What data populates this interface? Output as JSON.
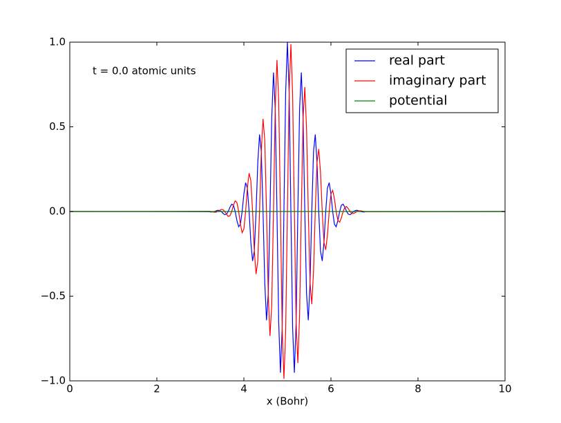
{
  "chart_data": {
    "type": "line",
    "xlabel": "x (Bohr)",
    "annotation": "t = 0.0 atomic units",
    "x": [
      0,
      3.2,
      3.24,
      3.28,
      3.32,
      3.36,
      3.4,
      3.44,
      3.48,
      3.52,
      3.56,
      3.6,
      3.64,
      3.68,
      3.72,
      3.76,
      3.8,
      3.84,
      3.88,
      3.92,
      3.96,
      4,
      4.04,
      4.08,
      4.12,
      4.16,
      4.2,
      4.24,
      4.28,
      4.32,
      4.36,
      4.4,
      4.44,
      4.48,
      4.52,
      4.56,
      4.6,
      4.64,
      4.68,
      4.72,
      4.76,
      4.8,
      4.84,
      4.88,
      4.92,
      4.96,
      5,
      5.04,
      5.08,
      5.12,
      5.16,
      5.2,
      5.24,
      5.28,
      5.32,
      5.36,
      5.4,
      5.44,
      5.48,
      5.52,
      5.56,
      5.6,
      5.64,
      5.68,
      5.72,
      5.76,
      5.8,
      5.84,
      5.88,
      5.92,
      5.96,
      6,
      6.04,
      6.08,
      6.12,
      6.16,
      6.2,
      6.24,
      6.28,
      6.32,
      6.36,
      6.4,
      6.44,
      6.48,
      6.52,
      6.56,
      6.6,
      6.64,
      6.68,
      6.72,
      6.76,
      6.8,
      10
    ],
    "series": [
      {
        "name": "real part",
        "color": "#0000ff",
        "values": [
          0,
          -0.001,
          -0.003,
          -0.002,
          0,
          0.004,
          0.007,
          0.006,
          0,
          -0.011,
          -0.019,
          -0.016,
          0,
          0.025,
          0.043,
          0.037,
          0,
          -0.053,
          -0.09,
          -0.075,
          0,
          0.103,
          0.17,
          0.139,
          0,
          -0.182,
          -0.292,
          -0.233,
          0,
          0.291,
          0.455,
          0.354,
          0,
          -0.421,
          -0.642,
          -0.487,
          0,
          0.551,
          0.821,
          0.608,
          0,
          -0.655,
          -0.952,
          -0.688,
          0,
          0.705,
          1,
          0.705,
          0,
          -0.688,
          -0.952,
          -0.655,
          0,
          0.608,
          0.821,
          0.551,
          0,
          -0.487,
          -0.642,
          -0.421,
          0,
          0.354,
          0.455,
          0.291,
          0,
          -0.233,
          -0.292,
          -0.182,
          0,
          0.139,
          0.17,
          0.103,
          0,
          -0.075,
          -0.09,
          -0.053,
          0,
          0.037,
          0.043,
          0.025,
          0,
          -0.016,
          -0.019,
          -0.011,
          0,
          0.006,
          0.007,
          0.004,
          0,
          -0.002,
          -0.003,
          -0.001,
          0
        ]
      },
      {
        "name": "imaginary part",
        "color": "#ff0000",
        "values": [
          0,
          0.001,
          0,
          -0.002,
          -0.004,
          -0.004,
          0,
          0.006,
          0.012,
          0.011,
          0,
          -0.016,
          -0.029,
          -0.025,
          0,
          0.037,
          0.063,
          0.053,
          0,
          -0.075,
          -0.125,
          -0.103,
          0,
          0.139,
          0.226,
          0.182,
          0,
          -0.233,
          -0.369,
          -0.291,
          0,
          0.354,
          0.547,
          0.421,
          0,
          -0.487,
          -0.735,
          -0.551,
          0,
          0.608,
          0.895,
          0.655,
          0,
          -0.688,
          -0.988,
          -0.705,
          0,
          0.705,
          0.988,
          0.688,
          0,
          -0.655,
          -0.895,
          -0.608,
          0,
          0.551,
          0.735,
          0.487,
          0,
          -0.421,
          -0.547,
          -0.354,
          0,
          0.291,
          0.369,
          0.233,
          0,
          -0.182,
          -0.226,
          -0.139,
          0,
          0.103,
          0.125,
          0.075,
          0,
          -0.053,
          -0.063,
          -0.037,
          0,
          0.025,
          0.029,
          0.016,
          0,
          -0.011,
          -0.012,
          -0.006,
          0,
          0.004,
          0.004,
          0.002,
          0,
          -0.001,
          0
        ]
      },
      {
        "name": "potential",
        "color": "#008000",
        "values": [
          0,
          0,
          0,
          0,
          0,
          0,
          0,
          0,
          0,
          0,
          0,
          0,
          0,
          0,
          0,
          0,
          0,
          0,
          0,
          0,
          0,
          0,
          0,
          0,
          0,
          0,
          0,
          0,
          0,
          0,
          0,
          0,
          0,
          0,
          0,
          0,
          0,
          0,
          0,
          0,
          0,
          0,
          0,
          0,
          0,
          0,
          0,
          0,
          0,
          0,
          0,
          0,
          0,
          0,
          0,
          0,
          0,
          0,
          0,
          0,
          0,
          0,
          0,
          0,
          0,
          0,
          0,
          0,
          0,
          0,
          0,
          0,
          0,
          0,
          0,
          0,
          0,
          0,
          0,
          0,
          0,
          0,
          0,
          0,
          0,
          0,
          0,
          0,
          0,
          0,
          0,
          0,
          0
        ]
      }
    ],
    "xlim": [
      0,
      10
    ],
    "xticks": [
      0,
      2,
      4,
      6,
      8,
      10
    ],
    "ylim": [
      -1,
      1
    ],
    "yticks": [
      {
        "value": -1,
        "label": "−1.0"
      },
      {
        "value": -0.5,
        "label": "−0.5"
      },
      {
        "value": 0,
        "label": "0.0"
      },
      {
        "value": 0.5,
        "label": "0.5"
      },
      {
        "value": 1,
        "label": "1.0"
      }
    ],
    "legend": "upper right"
  }
}
